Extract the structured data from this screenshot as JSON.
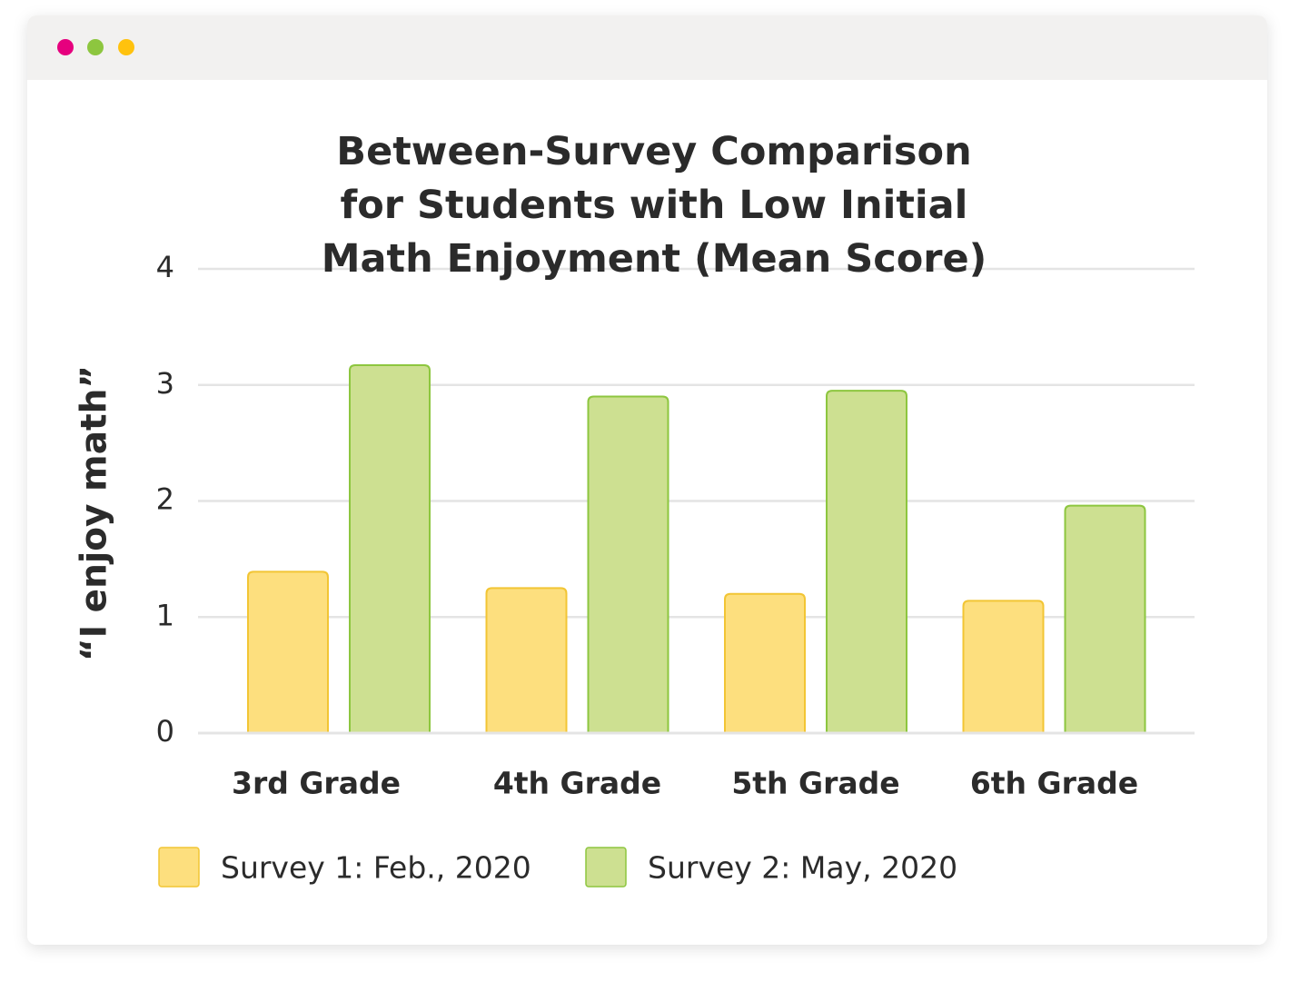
{
  "chart_data": {
    "type": "bar",
    "title": "Between-Survey Comparison for Students with Low Initial Math Enjoyment (Mean Score)",
    "y_label": "“I enjoy math”",
    "categories": [
      "3rd Grade",
      "4th Grade",
      "5th Grade",
      "6th Grade"
    ],
    "series": [
      {
        "name": "Survey 1: Feb., 2020",
        "color": "#fddf7e",
        "values": [
          1.39,
          1.25,
          1.2,
          1.14
        ]
      },
      {
        "name": "Survey 2: May, 2020",
        "color": "#cde091",
        "values": [
          3.17,
          2.9,
          2.95,
          1.96
        ]
      }
    ],
    "ylim": [
      0,
      4
    ],
    "yticks": [
      0,
      1,
      2,
      3,
      4
    ],
    "grid": true
  }
}
